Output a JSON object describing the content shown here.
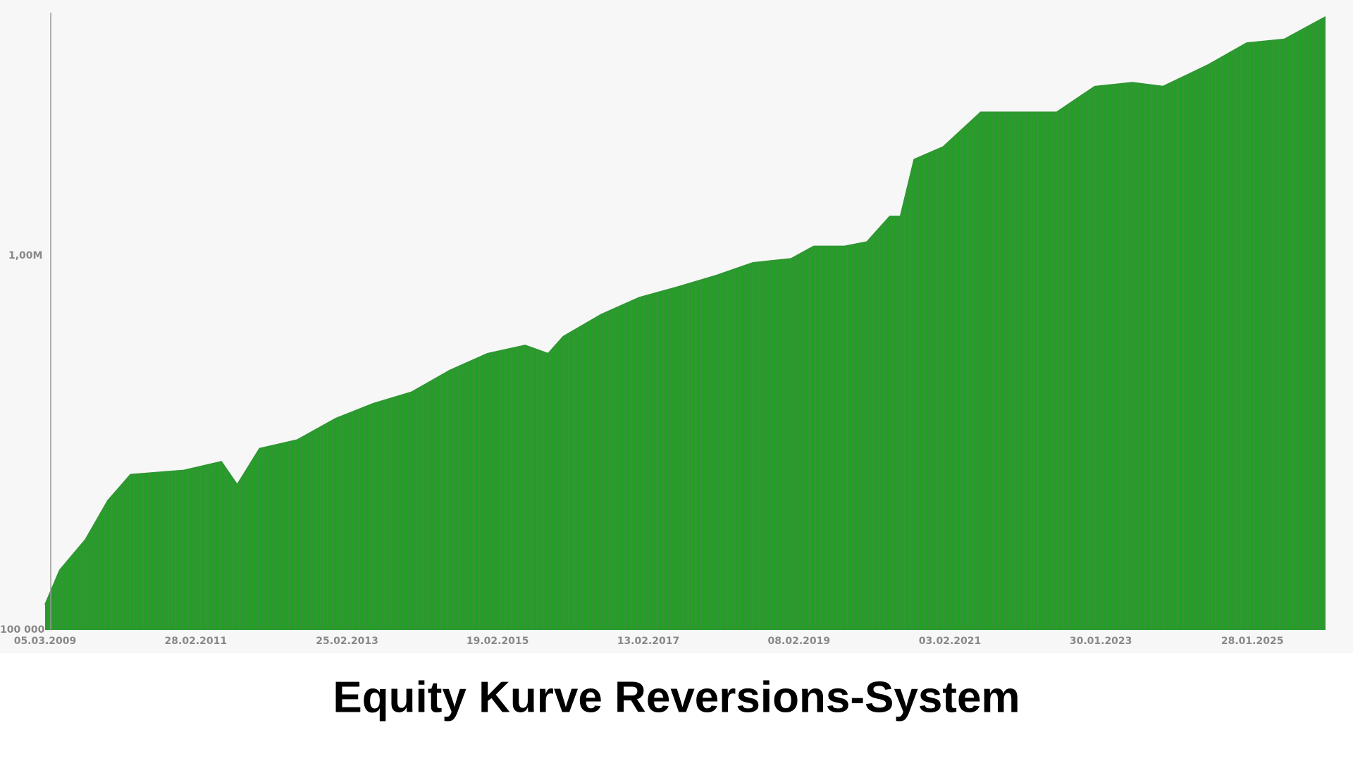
{
  "chart_data": {
    "type": "area",
    "title": "Equity Kurve Reversions-System",
    "x": [
      "2009-03-05",
      "2009-05-15",
      "2009-09-15",
      "2010-01-01",
      "2010-04-20",
      "2011-01-01",
      "2011-07-01",
      "2011-09-15",
      "2012-01-01",
      "2012-07-01",
      "2013-01-01",
      "2013-07-01",
      "2014-01-01",
      "2014-07-01",
      "2015-01-01",
      "2015-07-01",
      "2015-10-20",
      "2016-01-01",
      "2016-07-01",
      "2017-01-01",
      "2017-07-01",
      "2018-01-01",
      "2018-07-01",
      "2019-01-01",
      "2019-04-20",
      "2019-09-15",
      "2020-01-01",
      "2020-04-20",
      "2020-06-10",
      "2020-08-15",
      "2021-01-01",
      "2021-07-01",
      "2022-01-01",
      "2022-07-01",
      "2023-01-01",
      "2023-07-01",
      "2023-11-25",
      "2024-07-01",
      "2025-01-01",
      "2025-07-01",
      "2026-01-15"
    ],
    "values": [
      117000,
      145000,
      175000,
      223000,
      262000,
      269000,
      284000,
      246000,
      308000,
      325000,
      371000,
      407000,
      437000,
      499000,
      555000,
      584000,
      555000,
      617000,
      707000,
      786000,
      838000,
      899000,
      975000,
      1000000,
      1080000,
      1080000,
      1110000,
      1300000,
      1300000,
      1850000,
      2000000,
      2480000,
      2480000,
      2480000,
      2910000,
      2980000,
      2910000,
      3330000,
      3810000,
      3900000,
      4480000
    ],
    "color": "#2f9632",
    "log_scale": true,
    "xlim": [
      "2009-03-05",
      "2026-01-15"
    ],
    "xticks": [
      {
        "value": "2009-03-05",
        "label": "05.03.2009"
      },
      {
        "value": "2011-02-28",
        "label": "28.02.2011"
      },
      {
        "value": "2013-02-25",
        "label": "25.02.2013"
      },
      {
        "value": "2015-02-19",
        "label": "19.02.2015"
      },
      {
        "value": "2017-02-13",
        "label": "13.02.2017"
      },
      {
        "value": "2019-02-08",
        "label": "08.02.2019"
      },
      {
        "value": "2021-02-03",
        "label": "03.02.2021"
      },
      {
        "value": "2023-01-30",
        "label": "30.01.2023"
      },
      {
        "value": "2025-01-28",
        "label": "28.01.2025"
      }
    ],
    "ylim": [
      100000,
      4600000
    ],
    "yticks": [
      {
        "value": 100000,
        "label": "100 000"
      },
      {
        "value": 1000000,
        "label": "1,00M"
      }
    ],
    "grid": false
  }
}
